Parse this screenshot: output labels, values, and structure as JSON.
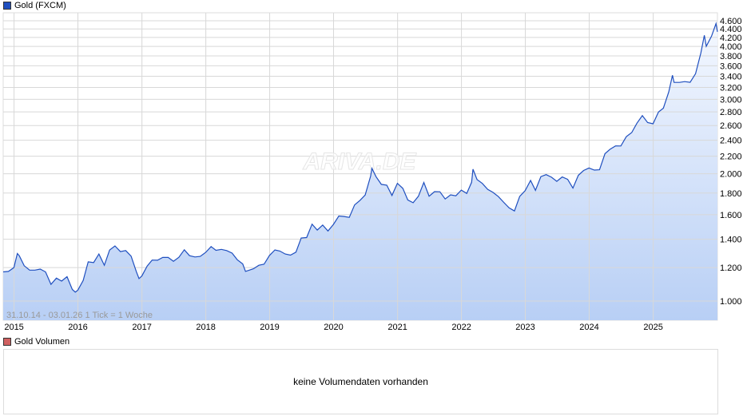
{
  "legend": {
    "main": "Gold (FXCM)",
    "main_color": "#1f4fbf",
    "volume": "Gold Volumen",
    "volume_color": "#d06060"
  },
  "range_info": "31.10.14 - 03.01.26   1 Tick = 1 Woche",
  "watermark": "ARIVA.DE",
  "volume_message": "keine Volumendaten vorhanden",
  "chart_data": {
    "type": "area",
    "y_scale": "log",
    "ylim": [
      900,
      4700
    ],
    "xlim": [
      "2014-10-31",
      "2026-01-03"
    ],
    "grid": true,
    "line_color": "#1f4fbf",
    "fill_gradient": [
      "#f4f8ff",
      "#b8cff5"
    ],
    "y_ticks": [
      1000,
      1200,
      1400,
      1600,
      1800,
      2000,
      2200,
      2400,
      2600,
      2800,
      3000,
      3200,
      3400,
      3600,
      3800,
      4000,
      4200,
      4400,
      4600
    ],
    "y_tick_labels": [
      "1.000",
      "1.200",
      "1.400",
      "1.600",
      "1.800",
      "2.000",
      "2.200",
      "2.400",
      "2.600",
      "2.800",
      "3.000",
      "3.200",
      "3.400",
      "3.600",
      "3.800",
      "4.000",
      "4.200",
      "4.400",
      "4.600"
    ],
    "x_ticks": [
      "2015-01-01",
      "2016-01-01",
      "2017-01-01",
      "2018-01-01",
      "2019-01-01",
      "2020-01-01",
      "2021-01-01",
      "2022-01-01",
      "2023-01-01",
      "2024-01-01",
      "2025-01-01"
    ],
    "x_tick_labels": [
      "2015",
      "2016",
      "2017",
      "2018",
      "2019",
      "2020",
      "2021",
      "2022",
      "2023",
      "2024",
      "2025"
    ],
    "series": [
      {
        "x": [
          "2014-10-31",
          "2014-11-30",
          "2014-12-31",
          "2015-01-20",
          "2015-01-31",
          "2015-02-28",
          "2015-03-31",
          "2015-04-30",
          "2015-05-31",
          "2015-06-30",
          "2015-07-31",
          "2015-08-31",
          "2015-09-30",
          "2015-10-31",
          "2015-11-30",
          "2015-12-17",
          "2015-12-31",
          "2016-01-31",
          "2016-02-29",
          "2016-03-31",
          "2016-04-30",
          "2016-05-31",
          "2016-06-30",
          "2016-07-31",
          "2016-08-31",
          "2016-09-30",
          "2016-10-31",
          "2016-11-30",
          "2016-12-15",
          "2016-12-31",
          "2017-01-31",
          "2017-02-28",
          "2017-03-31",
          "2017-04-30",
          "2017-05-31",
          "2017-06-30",
          "2017-07-31",
          "2017-08-31",
          "2017-09-30",
          "2017-10-31",
          "2017-11-30",
          "2017-12-31",
          "2018-01-31",
          "2018-02-28",
          "2018-03-31",
          "2018-04-30",
          "2018-05-31",
          "2018-06-30",
          "2018-07-31",
          "2018-08-16",
          "2018-09-30",
          "2018-10-31",
          "2018-11-30",
          "2018-12-31",
          "2019-01-31",
          "2019-02-28",
          "2019-03-31",
          "2019-04-30",
          "2019-05-31",
          "2019-06-30",
          "2019-07-31",
          "2019-08-31",
          "2019-09-30",
          "2019-10-31",
          "2019-11-30",
          "2019-12-31",
          "2020-01-31",
          "2020-02-29",
          "2020-03-31",
          "2020-04-30",
          "2020-05-31",
          "2020-06-30",
          "2020-07-31",
          "2020-08-07",
          "2020-08-31",
          "2020-09-30",
          "2020-10-31",
          "2020-11-30",
          "2020-12-31",
          "2021-01-31",
          "2021-02-28",
          "2021-03-31",
          "2021-04-30",
          "2021-05-31",
          "2021-06-30",
          "2021-07-31",
          "2021-08-31",
          "2021-09-30",
          "2021-10-31",
          "2021-11-30",
          "2021-12-31",
          "2022-01-31",
          "2022-02-28",
          "2022-03-08",
          "2022-03-31",
          "2022-04-30",
          "2022-05-31",
          "2022-06-30",
          "2022-07-31",
          "2022-08-31",
          "2022-09-30",
          "2022-10-31",
          "2022-11-30",
          "2022-12-31",
          "2023-01-31",
          "2023-02-28",
          "2023-03-31",
          "2023-04-30",
          "2023-05-31",
          "2023-06-30",
          "2023-07-31",
          "2023-08-31",
          "2023-09-30",
          "2023-10-31",
          "2023-11-30",
          "2023-12-31",
          "2024-01-31",
          "2024-02-29",
          "2024-03-31",
          "2024-04-30",
          "2024-05-31",
          "2024-06-30",
          "2024-07-31",
          "2024-08-31",
          "2024-09-30",
          "2024-10-31",
          "2024-11-30",
          "2024-12-31",
          "2025-01-31",
          "2025-02-28",
          "2025-03-31",
          "2025-04-21",
          "2025-04-30",
          "2025-05-31",
          "2025-06-30",
          "2025-07-31",
          "2025-08-31",
          "2025-09-30",
          "2025-10-20",
          "2025-10-31",
          "2025-11-30",
          "2025-12-26",
          "2026-01-03"
        ],
        "values": [
          1172,
          1175,
          1200,
          1295,
          1280,
          1212,
          1183,
          1183,
          1190,
          1172,
          1095,
          1133,
          1115,
          1142,
          1065,
          1050,
          1060,
          1118,
          1238,
          1233,
          1292,
          1215,
          1320,
          1350,
          1309,
          1316,
          1277,
          1173,
          1130,
          1146,
          1210,
          1250,
          1249,
          1268,
          1268,
          1242,
          1269,
          1322,
          1280,
          1271,
          1275,
          1303,
          1345,
          1318,
          1325,
          1316,
          1298,
          1252,
          1224,
          1175,
          1192,
          1215,
          1222,
          1282,
          1321,
          1313,
          1292,
          1284,
          1305,
          1409,
          1413,
          1520,
          1472,
          1513,
          1464,
          1517,
          1589,
          1585,
          1577,
          1687,
          1730,
          1781,
          1975,
          2060,
          1968,
          1887,
          1879,
          1777,
          1898,
          1847,
          1734,
          1708,
          1769,
          1907,
          1770,
          1814,
          1813,
          1743,
          1783,
          1774,
          1829,
          1797,
          1909,
          2050,
          1937,
          1897,
          1837,
          1807,
          1766,
          1711,
          1661,
          1633,
          1768,
          1824,
          1928,
          1827,
          1969,
          1990,
          1962,
          1919,
          1965,
          1940,
          1849,
          1983,
          2036,
          2063,
          2040,
          2044,
          2230,
          2286,
          2327,
          2326,
          2447,
          2503,
          2635,
          2744,
          2643,
          2625,
          2798,
          2858,
          3124,
          3420,
          3288,
          3289,
          3303,
          3290,
          3448,
          3858,
          4250,
          4002,
          4230,
          4530,
          4330
        ]
      }
    ]
  }
}
